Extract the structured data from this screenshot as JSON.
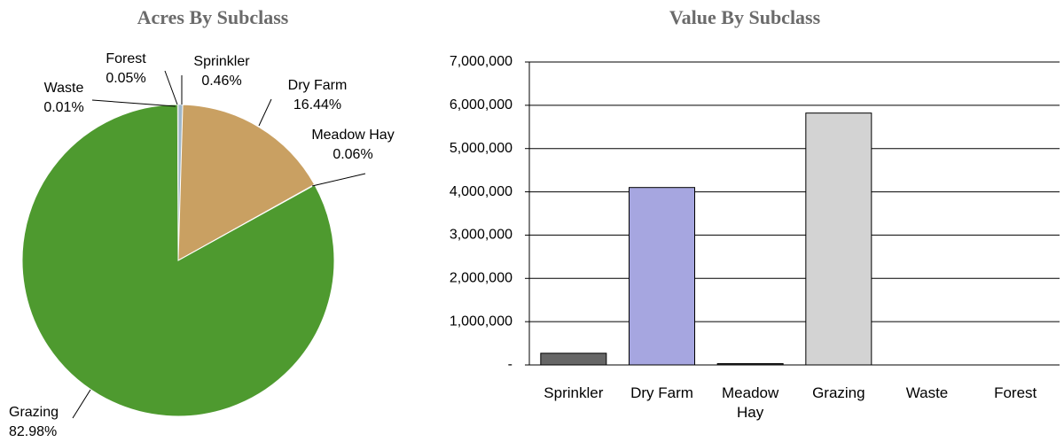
{
  "chart_data": [
    {
      "type": "pie",
      "title": "Acres By Subclass",
      "categories": [
        "Sprinkler",
        "Dry Farm",
        "Meadow Hay",
        "Grazing",
        "Waste",
        "Forest"
      ],
      "values": [
        0.46,
        16.44,
        0.06,
        82.98,
        0.01,
        0.05
      ],
      "value_labels": [
        "0.46%",
        "16.44%",
        "0.06%",
        "82.98%",
        "0.01%",
        "0.05%"
      ],
      "colors": [
        "#9fb7c9",
        "#c9a062",
        "#8f9e6a",
        "#4e9a2f",
        "#7a7a6a",
        "#5c7d3a"
      ]
    },
    {
      "type": "bar",
      "title": "Value By Subclass",
      "categories": [
        "Sprinkler",
        "Dry Farm",
        "Meadow Hay",
        "Grazing",
        "Waste",
        "Forest"
      ],
      "values": [
        270000,
        4100000,
        30000,
        5820000,
        0,
        0
      ],
      "colors": [
        "#666666",
        "#a6a6e0",
        "#333333",
        "#d3d3d3",
        "#d3d3d3",
        "#d3d3d3"
      ],
      "ylim": [
        0,
        7000000
      ],
      "yticks": [
        {
          "value": 0,
          "label": "-"
        },
        {
          "value": 1000000,
          "label": "1,000,000"
        },
        {
          "value": 2000000,
          "label": "2,000,000"
        },
        {
          "value": 3000000,
          "label": "3,000,000"
        },
        {
          "value": 4000000,
          "label": "4,000,000"
        },
        {
          "value": 5000000,
          "label": "5,000,000"
        },
        {
          "value": 6000000,
          "label": "6,000,000"
        },
        {
          "value": 7000000,
          "label": "7,000,000"
        }
      ],
      "grid": true
    }
  ]
}
